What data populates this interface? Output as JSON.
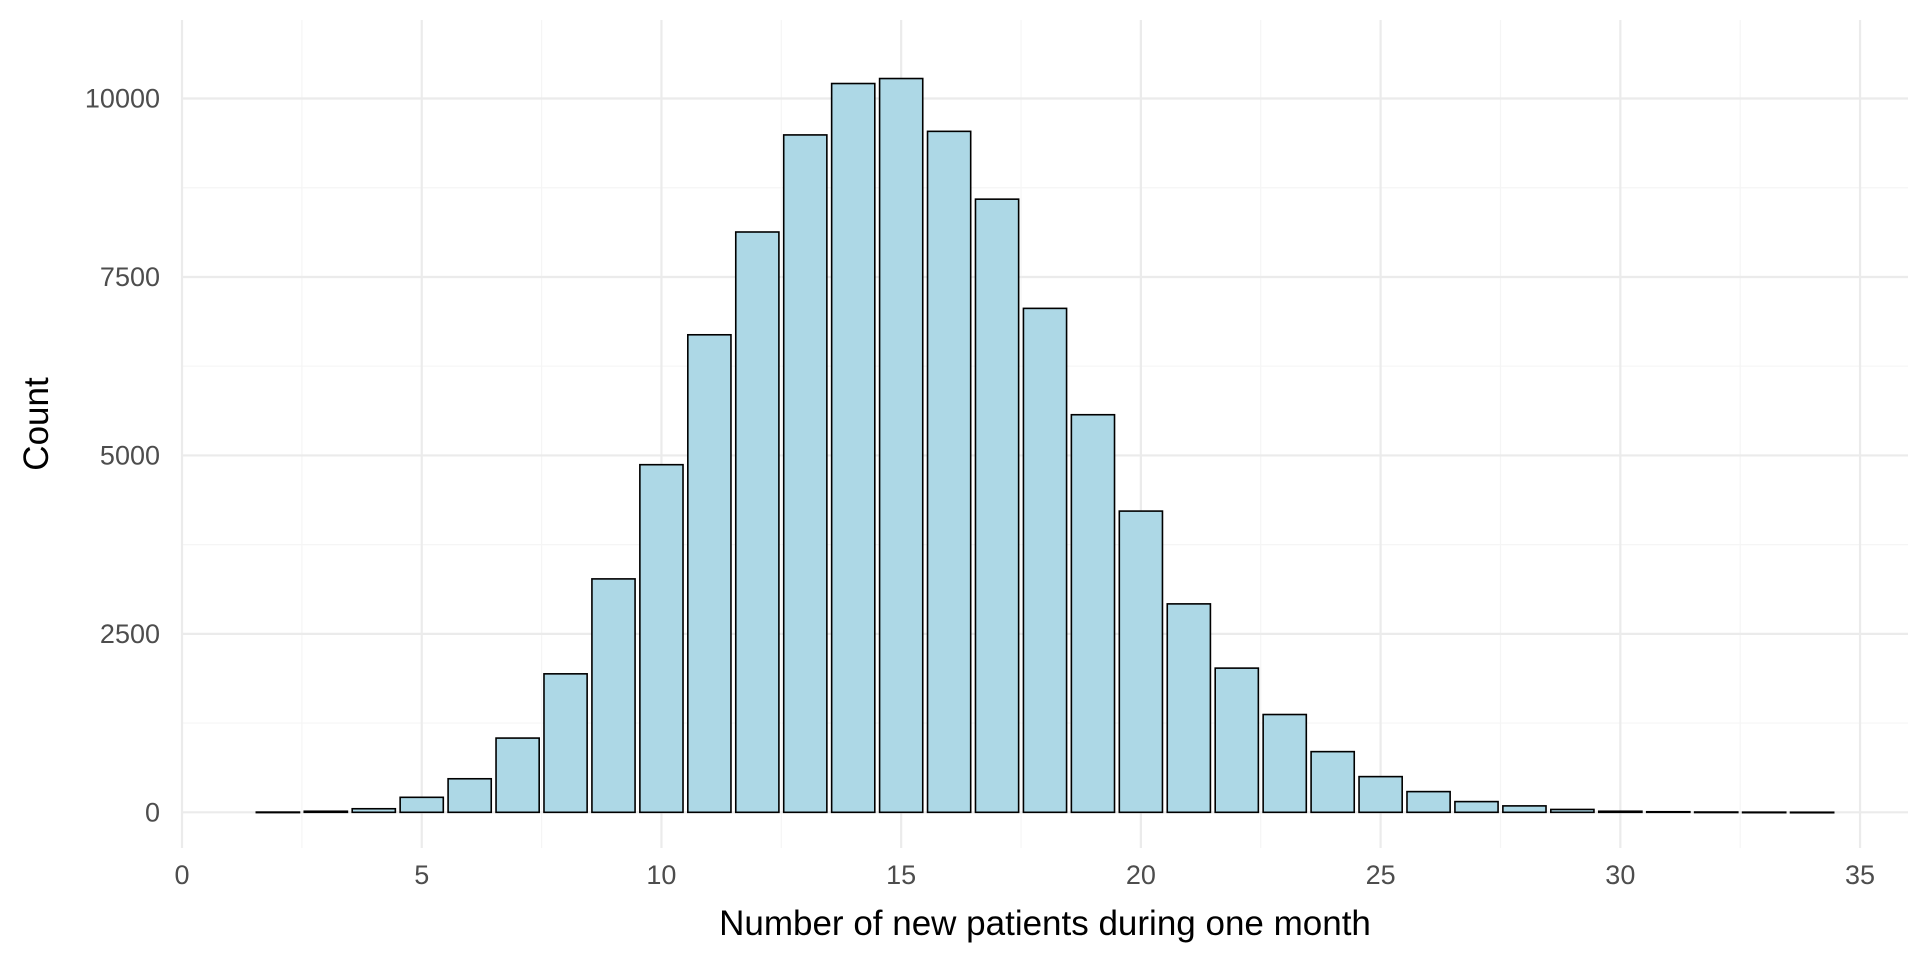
{
  "chart_data": {
    "type": "bar",
    "title": "",
    "xlabel": "Number of new patients during one month",
    "ylabel": "Count",
    "x": [
      2,
      3,
      4,
      5,
      6,
      7,
      8,
      9,
      10,
      11,
      12,
      13,
      14,
      15,
      16,
      17,
      18,
      19,
      20,
      21,
      22,
      23,
      24,
      25,
      26,
      27,
      28,
      29,
      30,
      31,
      32,
      33,
      34
    ],
    "values": [
      3,
      15,
      50,
      210,
      470,
      1040,
      1940,
      3270,
      4870,
      6690,
      8130,
      9490,
      10210,
      10280,
      9540,
      8590,
      7060,
      5570,
      4220,
      2920,
      2020,
      1370,
      850,
      500,
      290,
      150,
      90,
      40,
      15,
      8,
      4,
      2,
      1
    ],
    "xlim": [
      0,
      36
    ],
    "ylim": [
      -500,
      11100
    ],
    "x_ticks": [
      0,
      5,
      10,
      15,
      20,
      25,
      30,
      35
    ],
    "x_tick_labels": [
      "0",
      "5",
      "10",
      "15",
      "20",
      "25",
      "30",
      "35"
    ],
    "y_ticks": [
      0,
      2500,
      5000,
      7500,
      10000
    ],
    "y_tick_labels": [
      "0",
      "2500",
      "5000",
      "7500",
      "10000"
    ],
    "grid": true,
    "colors": {
      "bar_fill": "#add8e6",
      "bar_stroke": "#000000",
      "grid_major": "#ebebeb",
      "grid_minor": "#f5f5f5"
    }
  }
}
